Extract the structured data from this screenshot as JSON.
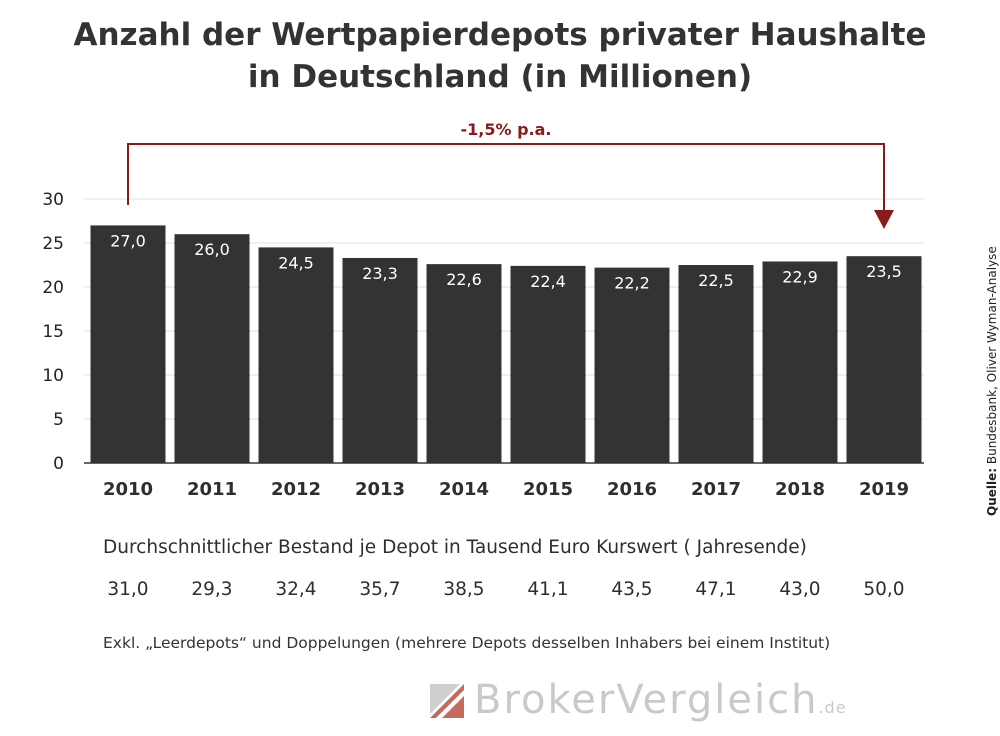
{
  "title_line1": "Anzahl der Wertpapierdepots privater Haushalte",
  "title_line2": "in Deutschland (in Millionen)",
  "annotation": "-1,5% p.a.",
  "source_label": "Quelle:",
  "source_text": " Bundesbank, Oliver Wyman-Analyse",
  "row_label": "Durchschnittlicher Bestand je Depot in Tausend Euro Kurswert ( Jahresende)",
  "row_values": [
    "31,0",
    "29,3",
    "32,4",
    "35,7",
    "38,5",
    "41,1",
    "43,5",
    "47,1",
    "43,0",
    "50,0"
  ],
  "footnote": "Exkl. „Leerdepots“ und Doppelungen (mehrere Depots desselben Inhabers bei einem Institut)",
  "logo_text_main": "BrokerVergleich",
  "logo_text_tld": ".de",
  "colors": {
    "bar": "#333333",
    "accent": "#8b1a1a",
    "grid": "#e0e0e0"
  },
  "chart_data": {
    "type": "bar",
    "categories": [
      "2010",
      "2011",
      "2012",
      "2013",
      "2014",
      "2015",
      "2016",
      "2017",
      "2018",
      "2019"
    ],
    "values": [
      27.0,
      26.0,
      24.5,
      23.3,
      22.6,
      22.4,
      22.2,
      22.5,
      22.9,
      23.5
    ],
    "value_labels": [
      "27,0",
      "26,0",
      "24,5",
      "23,3",
      "22,6",
      "22,4",
      "22,2",
      "22,5",
      "22,9",
      "23,5"
    ],
    "ylim": [
      0,
      30
    ],
    "yticks": [
      0,
      5,
      10,
      15,
      20,
      25,
      30
    ],
    "grid": true,
    "xlabel": "",
    "ylabel": ""
  }
}
